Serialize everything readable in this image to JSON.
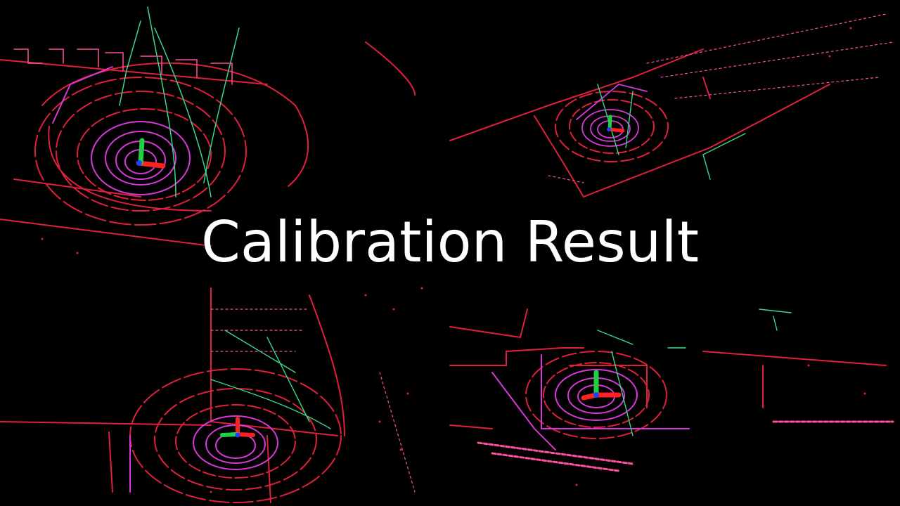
{
  "title": "Calibration Result",
  "colors": {
    "background": "#000000",
    "scan_red": "#e0203a",
    "scan_magenta": "#d838d8",
    "scan_pink": "#ff4fa0",
    "scan_green": "#39d98a",
    "axis_x": "#ff2020",
    "axis_y": "#20d040",
    "axis_z": "#2040ff",
    "title_text": "#ffffff"
  }
}
